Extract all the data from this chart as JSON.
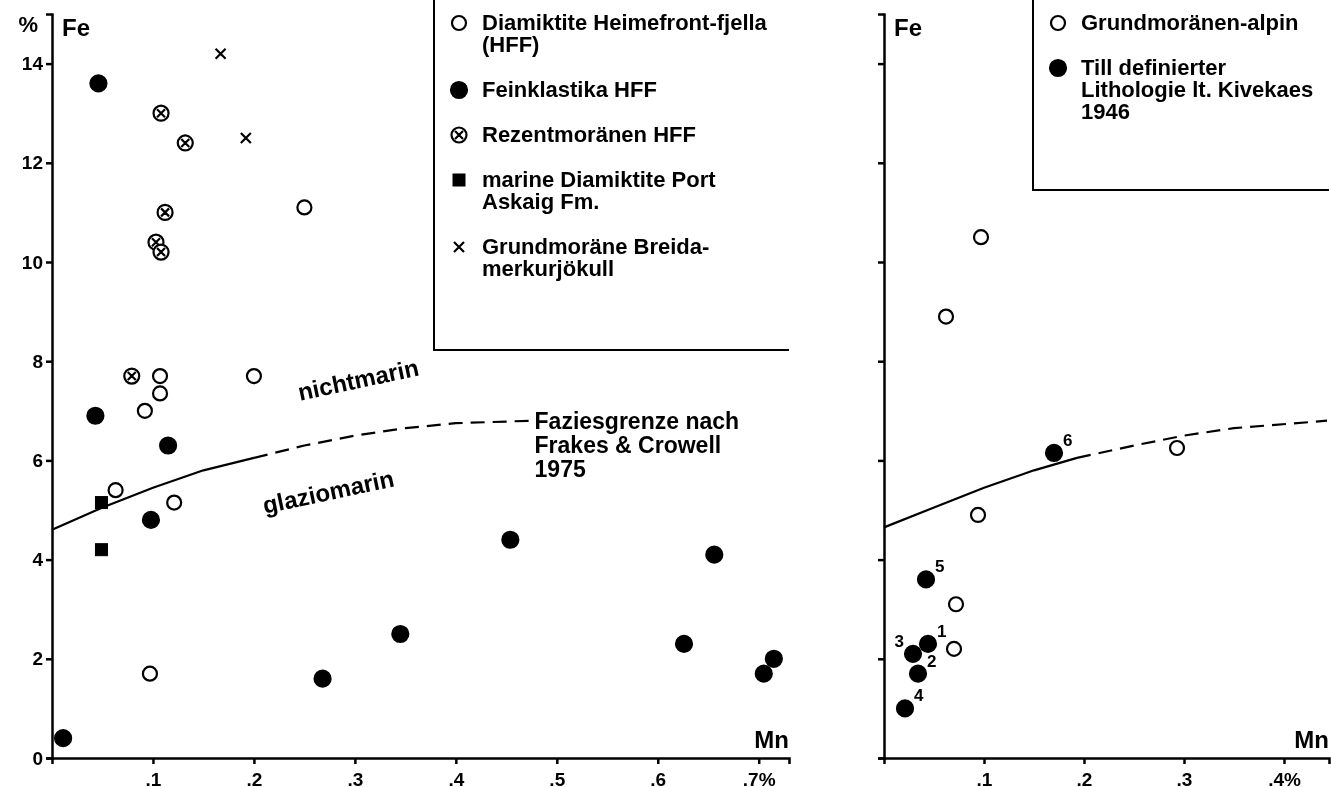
{
  "chart_data": [
    {
      "type": "scatter",
      "ylabel": "Fe",
      "xlabel": "Mn",
      "xlim": [
        0,
        0.73
      ],
      "ylim": [
        0,
        15
      ],
      "xticks": [
        {
          "value": 0.1,
          "label": ".1"
        },
        {
          "value": 0.2,
          "label": ".2"
        },
        {
          "value": 0.3,
          "label": ".3"
        },
        {
          "value": 0.4,
          "label": ".4"
        },
        {
          "value": 0.5,
          "label": ".5"
        },
        {
          "value": 0.6,
          "label": ".6"
        },
        {
          "value": 0.7,
          "label": ".7%"
        }
      ],
      "yticks": [
        0,
        2,
        4,
        6,
        8,
        10,
        12,
        14
      ],
      "legend": "top right",
      "annotations": [
        "%",
        "nichtmarin",
        "glaziomarin",
        {
          "text": "Faziesgrenze nach Frakes & Crowell 1975",
          "x": 0.475,
          "y": 6.8
        }
      ],
      "series": [
        {
          "name": "Diamiktite Heimefront-fjella (HFF)",
          "color": "#ffffff",
          "marker": "circle",
          "x": [
            0.25,
            0.107,
            0.2,
            0.107,
            0.092,
            0.063,
            0.121,
            0.097
          ],
          "values": [
            11.1,
            7.7,
            7.7,
            7.35,
            7.0,
            5.4,
            5.15,
            1.7
          ]
        },
        {
          "name": "Feinklastika HFF",
          "color": "#000000",
          "marker": "circle",
          "x": [
            0.046,
            0.043,
            0.115,
            0.098,
            0.011,
            0.268,
            0.345,
            0.454,
            0.656,
            0.626,
            0.705,
            0.715
          ],
          "values": [
            13.6,
            6.9,
            6.3,
            4.8,
            0.4,
            1.6,
            2.5,
            4.4,
            4.1,
            2.3,
            1.7,
            2.0
          ]
        },
        {
          "name": "Rezentmoränen HFF",
          "color": "#ffffff",
          "marker": "cross",
          "x": [
            0.108,
            0.132,
            0.112,
            0.103,
            0.108,
            0.079
          ],
          "values": [
            13.0,
            12.4,
            11.0,
            10.4,
            10.2,
            7.7
          ]
        },
        {
          "name": "marine Diamiktite Port Askaig Fm.",
          "color": "#000000",
          "marker": "square",
          "x": [
            0.049,
            0.049
          ],
          "values": [
            5.15,
            4.2
          ]
        },
        {
          "name": "Grundmoräne Breida-merkurjökull",
          "color": "#000000",
          "marker": "cross",
          "x": [
            0.167,
            0.192
          ],
          "values": [
            14.2,
            12.5
          ]
        },
        {
          "type": "line",
          "color": "#000000",
          "line_style": "solid",
          "marker": "none",
          "x": [
            0,
            0.05,
            0.1,
            0.15,
            0.2
          ],
          "values": [
            4.6,
            5.05,
            5.45,
            5.8,
            6.05
          ]
        },
        {
          "type": "line",
          "color": "#000000",
          "line_style": "dashed",
          "marker": "none",
          "x": [
            0.2,
            0.25,
            0.3,
            0.35,
            0.4,
            0.475
          ],
          "values": [
            6.05,
            6.3,
            6.5,
            6.65,
            6.75,
            6.8
          ]
        }
      ]
    },
    {
      "type": "scatter",
      "ylabel": "Fe",
      "xlabel": "Mn",
      "xlim": [
        0,
        0.445
      ],
      "ylim": [
        0,
        15
      ],
      "xticks": [
        {
          "value": 0.1,
          "label": ".1"
        },
        {
          "value": 0.2,
          "label": ".2"
        },
        {
          "value": 0.3,
          "label": ".3"
        },
        {
          "value": 0.4,
          "label": ".4%"
        }
      ],
      "yticks": [
        0,
        2,
        4,
        6,
        8,
        10,
        12,
        14
      ],
      "tick_labels": "x",
      "legend": "top right",
      "annotations": [
        {
          "text": "1",
          "x": 0.044,
          "y": 2.3
        },
        {
          "text": "2",
          "x": 0.034,
          "y": 1.7
        },
        {
          "text": "3",
          "x": 0.029,
          "y": 2.1
        },
        {
          "text": "4",
          "x": 0.021,
          "y": 1.0
        },
        {
          "text": "5",
          "x": 0.042,
          "y": 3.6
        },
        {
          "text": "6",
          "x": 0.17,
          "y": 6.15
        }
      ],
      "series": [
        {
          "name": "Grundmoränen-alpin",
          "color": "#ffffff",
          "marker": "circle",
          "x": [
            0.097,
            0.062,
            0.293,
            0.094,
            0.072,
            0.07
          ],
          "values": [
            10.5,
            8.9,
            6.25,
            4.9,
            3.1,
            2.2
          ]
        },
        {
          "name": "Till definierter Lithologie lt. Kivekaes 1946",
          "color": "#000000",
          "marker": "circle",
          "x": [
            0.044,
            0.034,
            0.029,
            0.021,
            0.042,
            0.17
          ],
          "values": [
            2.3,
            1.7,
            2.1,
            1.0,
            3.6,
            6.15
          ]
        },
        {
          "type": "line",
          "color": "#000000",
          "line_style": "solid",
          "marker": "none",
          "x": [
            0,
            0.05,
            0.1,
            0.15,
            0.193
          ],
          "values": [
            4.65,
            5.05,
            5.45,
            5.8,
            6.05
          ]
        },
        {
          "type": "line",
          "color": "#000000",
          "line_style": "dashed",
          "marker": "none",
          "x": [
            0.193,
            0.25,
            0.3,
            0.35,
            0.443
          ],
          "values": [
            6.05,
            6.3,
            6.5,
            6.65,
            6.8
          ]
        }
      ]
    }
  ]
}
